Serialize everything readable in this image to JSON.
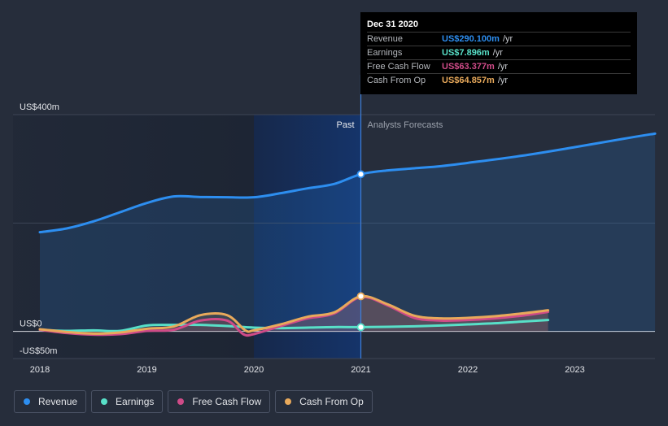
{
  "chart_data": {
    "type": "line",
    "x_ticks": [
      "2018",
      "2019",
      "2020",
      "2021",
      "2022",
      "2023"
    ],
    "x_range": [
      2018.0,
      2023.75
    ],
    "ylim": [
      -50,
      400
    ],
    "y_labels": [
      {
        "value": 400,
        "text": "US$400m"
      },
      {
        "value": 0,
        "text": "US$0"
      },
      {
        "value": -50,
        "text": "-US$50m"
      }
    ],
    "divider_x": 2021.0,
    "shade_start": 2020.0,
    "past_label": "Past",
    "forecast_label": "Analysts Forecasts",
    "series": [
      {
        "name": "Revenue",
        "color": "#2d8ef0",
        "fill": true,
        "points": [
          [
            2018.0,
            183
          ],
          [
            2018.25,
            190
          ],
          [
            2018.5,
            203
          ],
          [
            2018.75,
            220
          ],
          [
            2019.0,
            237
          ],
          [
            2019.25,
            249
          ],
          [
            2019.5,
            248
          ],
          [
            2019.75,
            247.5
          ],
          [
            2020.0,
            247.5
          ],
          [
            2020.25,
            255
          ],
          [
            2020.5,
            264
          ],
          [
            2020.75,
            272
          ],
          [
            2021.0,
            290.1
          ],
          [
            2021.25,
            297
          ],
          [
            2021.5,
            301
          ],
          [
            2021.75,
            305
          ],
          [
            2022.0,
            311
          ],
          [
            2022.5,
            324
          ],
          [
            2023.0,
            340
          ],
          [
            2023.5,
            357
          ],
          [
            2023.75,
            365
          ]
        ]
      },
      {
        "name": "Earnings",
        "color": "#58e0c8",
        "fill": false,
        "points": [
          [
            2018.0,
            3
          ],
          [
            2018.25,
            1
          ],
          [
            2018.5,
            2
          ],
          [
            2018.75,
            1
          ],
          [
            2019.0,
            11
          ],
          [
            2019.25,
            12
          ],
          [
            2019.5,
            12
          ],
          [
            2019.75,
            10
          ],
          [
            2020.0,
            7
          ],
          [
            2020.25,
            6
          ],
          [
            2020.5,
            7
          ],
          [
            2020.75,
            8
          ],
          [
            2021.0,
            7.896
          ],
          [
            2021.25,
            8.5
          ],
          [
            2021.5,
            9.5
          ],
          [
            2021.75,
            11
          ],
          [
            2022.0,
            13
          ],
          [
            2022.25,
            15
          ],
          [
            2022.5,
            18
          ],
          [
            2022.75,
            21
          ]
        ]
      },
      {
        "name": "Free Cash Flow",
        "color": "#cf4b88",
        "fill": true,
        "points": [
          [
            2018.0,
            3
          ],
          [
            2018.25,
            -3
          ],
          [
            2018.5,
            -6
          ],
          [
            2018.75,
            -5
          ],
          [
            2019.0,
            1
          ],
          [
            2019.25,
            3
          ],
          [
            2019.5,
            20
          ],
          [
            2019.75,
            20
          ],
          [
            2019.9,
            -5
          ],
          [
            2020.0,
            -5
          ],
          [
            2020.25,
            10
          ],
          [
            2020.5,
            24
          ],
          [
            2020.75,
            33
          ],
          [
            2021.0,
            63.377
          ],
          [
            2021.25,
            48
          ],
          [
            2021.5,
            25
          ],
          [
            2021.75,
            20
          ],
          [
            2022.0,
            21
          ],
          [
            2022.25,
            24
          ],
          [
            2022.5,
            29
          ],
          [
            2022.75,
            36
          ]
        ]
      },
      {
        "name": "Cash From Op",
        "color": "#e8a95b",
        "fill": true,
        "points": [
          [
            2018.0,
            4
          ],
          [
            2018.25,
            -1
          ],
          [
            2018.5,
            -4
          ],
          [
            2018.75,
            -2
          ],
          [
            2019.0,
            5
          ],
          [
            2019.25,
            9
          ],
          [
            2019.5,
            30
          ],
          [
            2019.75,
            30
          ],
          [
            2019.92,
            2
          ],
          [
            2020.0,
            2
          ],
          [
            2020.25,
            13
          ],
          [
            2020.5,
            27
          ],
          [
            2020.75,
            35
          ],
          [
            2021.0,
            64.857
          ],
          [
            2021.25,
            50
          ],
          [
            2021.5,
            29
          ],
          [
            2021.75,
            24
          ],
          [
            2022.0,
            25
          ],
          [
            2022.25,
            28
          ],
          [
            2022.5,
            33
          ],
          [
            2022.75,
            39
          ]
        ]
      }
    ],
    "markers": [
      {
        "series": "Revenue",
        "x": 2021.0,
        "y": 290.1
      },
      {
        "series": "Cash From Op",
        "x": 2021.0,
        "y": 64.857
      },
      {
        "series": "Earnings",
        "x": 2021.0,
        "y": 7.896
      }
    ]
  },
  "tooltip": {
    "date": "Dec 31 2020",
    "rows": [
      {
        "label": "Revenue",
        "value": "US$290.100m",
        "unit": "/yr",
        "color": "#2d8ef0"
      },
      {
        "label": "Earnings",
        "value": "US$7.896m",
        "unit": "/yr",
        "color": "#58e0c8"
      },
      {
        "label": "Free Cash Flow",
        "value": "US$63.377m",
        "unit": "/yr",
        "color": "#cf4b88"
      },
      {
        "label": "Cash From Op",
        "value": "US$64.857m",
        "unit": "/yr",
        "color": "#e8a95b"
      }
    ]
  },
  "legend": [
    {
      "label": "Revenue",
      "color": "#2d8ef0"
    },
    {
      "label": "Earnings",
      "color": "#58e0c8"
    },
    {
      "label": "Free Cash Flow",
      "color": "#cf4b88"
    },
    {
      "label": "Cash From Op",
      "color": "#e8a95b"
    }
  ]
}
